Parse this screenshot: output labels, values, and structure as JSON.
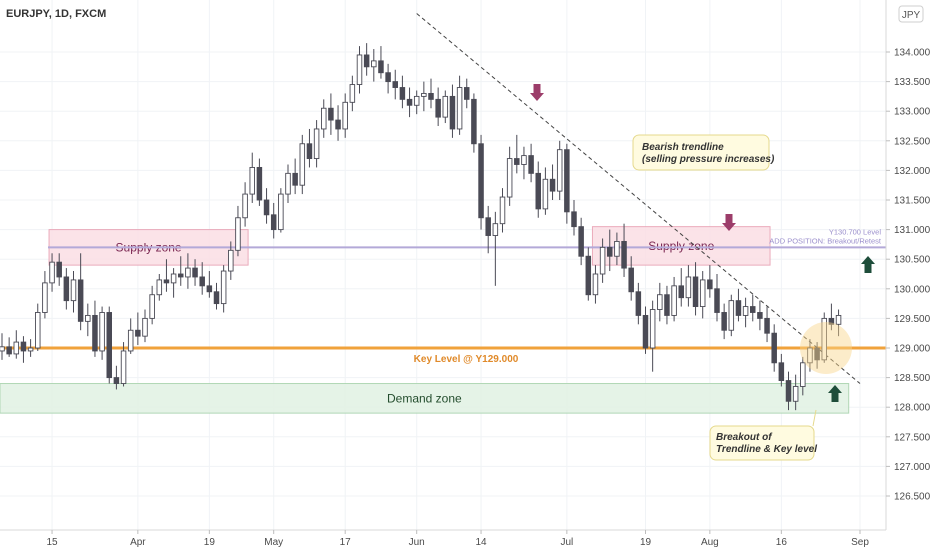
{
  "header": {
    "symbol_title": "EURJPY, 1D, FXCM",
    "currency_badge": "JPY"
  },
  "colors": {
    "bull_body": "#ffffff",
    "bear_body": "#4a4a55",
    "candle_border": "#4a4a55",
    "key_level": "#f0a23b",
    "supply_fill": "#fbe0e6",
    "supply_border": "#e9a2b4",
    "demand_fill": "#e3f2e5",
    "demand_border": "#a9d3ae",
    "add_position_line": "#b3a9d8",
    "arrow_down": "#9c3d6a",
    "arrow_up": "#1e4d3a",
    "trendline": "#444444"
  },
  "chart_data": {
    "type": "candlestick",
    "title": "EURJPY, 1D, FXCM",
    "currency": "JPY",
    "ylim": [
      126.1,
      134.6
    ],
    "y_ticks": [
      "126.500",
      "127.000",
      "127.500",
      "128.000",
      "128.500",
      "129.000",
      "129.500",
      "130.000",
      "130.500",
      "131.000",
      "131.500",
      "132.000",
      "132.500",
      "133.000",
      "133.500",
      "134.000"
    ],
    "x_ticks": [
      {
        "label": "15",
        "index": 7
      },
      {
        "label": "Apr",
        "index": 19
      },
      {
        "label": "19",
        "index": 29
      },
      {
        "label": "May",
        "index": 38
      },
      {
        "label": "17",
        "index": 48
      },
      {
        "label": "Jun",
        "index": 58
      },
      {
        "label": "14",
        "index": 67
      },
      {
        "label": "Jul",
        "index": 79
      },
      {
        "label": "19",
        "index": 90
      },
      {
        "label": "Aug",
        "index": 99
      },
      {
        "label": "16",
        "index": 109
      },
      {
        "label": "Sep",
        "index": 120
      }
    ],
    "candles": [
      {
        "o": 128.95,
        "h": 129.25,
        "l": 128.8,
        "c": 129.02
      },
      {
        "o": 129.02,
        "h": 129.18,
        "l": 128.85,
        "c": 128.9
      },
      {
        "o": 128.9,
        "h": 129.3,
        "l": 128.82,
        "c": 129.1
      },
      {
        "o": 129.1,
        "h": 129.2,
        "l": 128.75,
        "c": 128.95
      },
      {
        "o": 128.95,
        "h": 129.15,
        "l": 128.85,
        "c": 129.0
      },
      {
        "o": 129.0,
        "h": 129.75,
        "l": 128.95,
        "c": 129.6
      },
      {
        "o": 129.6,
        "h": 130.3,
        "l": 129.5,
        "c": 130.1
      },
      {
        "o": 130.1,
        "h": 130.6,
        "l": 129.95,
        "c": 130.45
      },
      {
        "o": 130.45,
        "h": 130.6,
        "l": 130.05,
        "c": 130.2
      },
      {
        "o": 130.2,
        "h": 130.35,
        "l": 129.65,
        "c": 129.8
      },
      {
        "o": 129.8,
        "h": 130.3,
        "l": 129.6,
        "c": 130.15
      },
      {
        "o": 130.15,
        "h": 130.6,
        "l": 129.3,
        "c": 129.45
      },
      {
        "o": 129.45,
        "h": 129.75,
        "l": 129.2,
        "c": 129.55
      },
      {
        "o": 129.55,
        "h": 129.8,
        "l": 128.85,
        "c": 128.95
      },
      {
        "o": 128.95,
        "h": 129.7,
        "l": 128.8,
        "c": 129.6
      },
      {
        "o": 129.6,
        "h": 129.7,
        "l": 128.4,
        "c": 128.5
      },
      {
        "o": 128.5,
        "h": 128.7,
        "l": 128.3,
        "c": 128.4
      },
      {
        "o": 128.4,
        "h": 129.1,
        "l": 128.35,
        "c": 128.95
      },
      {
        "o": 128.95,
        "h": 129.5,
        "l": 128.9,
        "c": 129.3
      },
      {
        "o": 129.3,
        "h": 129.6,
        "l": 129.05,
        "c": 129.2
      },
      {
        "o": 129.2,
        "h": 129.65,
        "l": 129.1,
        "c": 129.5
      },
      {
        "o": 129.5,
        "h": 130.05,
        "l": 129.4,
        "c": 129.9
      },
      {
        "o": 129.9,
        "h": 130.25,
        "l": 129.8,
        "c": 130.15
      },
      {
        "o": 130.15,
        "h": 130.5,
        "l": 129.95,
        "c": 130.1
      },
      {
        "o": 130.1,
        "h": 130.35,
        "l": 129.85,
        "c": 130.25
      },
      {
        "o": 130.25,
        "h": 130.55,
        "l": 130.05,
        "c": 130.2
      },
      {
        "o": 130.2,
        "h": 130.6,
        "l": 130.0,
        "c": 130.35
      },
      {
        "o": 130.35,
        "h": 130.5,
        "l": 130.05,
        "c": 130.2
      },
      {
        "o": 130.2,
        "h": 130.45,
        "l": 129.9,
        "c": 130.05
      },
      {
        "o": 130.05,
        "h": 130.3,
        "l": 129.85,
        "c": 129.95
      },
      {
        "o": 129.95,
        "h": 130.1,
        "l": 129.65,
        "c": 129.75
      },
      {
        "o": 129.75,
        "h": 130.4,
        "l": 129.6,
        "c": 130.3
      },
      {
        "o": 130.3,
        "h": 130.8,
        "l": 130.15,
        "c": 130.65
      },
      {
        "o": 130.65,
        "h": 131.4,
        "l": 130.55,
        "c": 131.2
      },
      {
        "o": 131.2,
        "h": 131.8,
        "l": 131.05,
        "c": 131.6
      },
      {
        "o": 131.6,
        "h": 132.3,
        "l": 131.45,
        "c": 132.05
      },
      {
        "o": 132.05,
        "h": 132.2,
        "l": 131.4,
        "c": 131.5
      },
      {
        "o": 131.5,
        "h": 131.7,
        "l": 131.1,
        "c": 131.25
      },
      {
        "o": 131.25,
        "h": 131.45,
        "l": 130.85,
        "c": 131.0
      },
      {
        "o": 131.0,
        "h": 131.7,
        "l": 130.95,
        "c": 131.6
      },
      {
        "o": 131.6,
        "h": 132.1,
        "l": 131.45,
        "c": 131.95
      },
      {
        "o": 131.95,
        "h": 132.2,
        "l": 131.6,
        "c": 131.75
      },
      {
        "o": 131.75,
        "h": 132.6,
        "l": 131.6,
        "c": 132.45
      },
      {
        "o": 132.45,
        "h": 132.7,
        "l": 132.05,
        "c": 132.2
      },
      {
        "o": 132.2,
        "h": 132.85,
        "l": 132.05,
        "c": 132.7
      },
      {
        "o": 132.7,
        "h": 133.2,
        "l": 132.55,
        "c": 133.05
      },
      {
        "o": 133.05,
        "h": 133.3,
        "l": 132.6,
        "c": 132.85
      },
      {
        "o": 132.85,
        "h": 133.1,
        "l": 132.5,
        "c": 132.7
      },
      {
        "o": 132.7,
        "h": 133.3,
        "l": 132.55,
        "c": 133.15
      },
      {
        "o": 133.15,
        "h": 133.6,
        "l": 133.0,
        "c": 133.45
      },
      {
        "o": 133.45,
        "h": 134.1,
        "l": 133.3,
        "c": 133.95
      },
      {
        "o": 133.95,
        "h": 134.15,
        "l": 133.6,
        "c": 133.75
      },
      {
        "o": 133.75,
        "h": 134.05,
        "l": 133.5,
        "c": 133.85
      },
      {
        "o": 133.85,
        "h": 134.1,
        "l": 133.55,
        "c": 133.65
      },
      {
        "o": 133.65,
        "h": 133.8,
        "l": 133.3,
        "c": 133.5
      },
      {
        "o": 133.5,
        "h": 133.7,
        "l": 133.2,
        "c": 133.4
      },
      {
        "o": 133.4,
        "h": 133.6,
        "l": 133.05,
        "c": 133.2
      },
      {
        "o": 133.2,
        "h": 133.4,
        "l": 132.9,
        "c": 133.1
      },
      {
        "o": 133.1,
        "h": 133.35,
        "l": 132.95,
        "c": 133.25
      },
      {
        "o": 133.25,
        "h": 133.5,
        "l": 133.0,
        "c": 133.3
      },
      {
        "o": 133.3,
        "h": 133.55,
        "l": 133.05,
        "c": 133.2
      },
      {
        "o": 133.2,
        "h": 133.4,
        "l": 132.75,
        "c": 132.9
      },
      {
        "o": 132.9,
        "h": 133.35,
        "l": 132.8,
        "c": 133.25
      },
      {
        "o": 133.25,
        "h": 133.45,
        "l": 132.55,
        "c": 132.7
      },
      {
        "o": 132.7,
        "h": 133.6,
        "l": 132.6,
        "c": 133.4
      },
      {
        "o": 133.4,
        "h": 133.55,
        "l": 133.05,
        "c": 133.2
      },
      {
        "o": 133.2,
        "h": 133.3,
        "l": 132.3,
        "c": 132.45
      },
      {
        "o": 132.45,
        "h": 132.6,
        "l": 131.0,
        "c": 131.2
      },
      {
        "o": 131.2,
        "h": 131.4,
        "l": 130.6,
        "c": 130.9
      },
      {
        "o": 130.9,
        "h": 131.3,
        "l": 130.05,
        "c": 131.1
      },
      {
        "o": 131.1,
        "h": 131.7,
        "l": 130.95,
        "c": 131.55
      },
      {
        "o": 131.55,
        "h": 132.4,
        "l": 131.4,
        "c": 132.2
      },
      {
        "o": 132.2,
        "h": 132.6,
        "l": 131.95,
        "c": 132.1
      },
      {
        "o": 132.1,
        "h": 132.4,
        "l": 131.85,
        "c": 132.25
      },
      {
        "o": 132.25,
        "h": 132.45,
        "l": 131.8,
        "c": 131.95
      },
      {
        "o": 131.95,
        "h": 132.15,
        "l": 131.2,
        "c": 131.35
      },
      {
        "o": 131.35,
        "h": 132.05,
        "l": 131.25,
        "c": 131.85
      },
      {
        "o": 131.85,
        "h": 132.1,
        "l": 131.5,
        "c": 131.65
      },
      {
        "o": 131.65,
        "h": 132.5,
        "l": 131.5,
        "c": 132.35
      },
      {
        "o": 132.35,
        "h": 132.45,
        "l": 131.1,
        "c": 131.3
      },
      {
        "o": 131.3,
        "h": 131.5,
        "l": 130.9,
        "c": 131.05
      },
      {
        "o": 131.05,
        "h": 131.2,
        "l": 130.4,
        "c": 130.55
      },
      {
        "o": 130.55,
        "h": 130.7,
        "l": 129.8,
        "c": 129.9
      },
      {
        "o": 129.9,
        "h": 130.4,
        "l": 129.75,
        "c": 130.25
      },
      {
        "o": 130.25,
        "h": 130.85,
        "l": 130.1,
        "c": 130.7
      },
      {
        "o": 130.7,
        "h": 131.0,
        "l": 130.3,
        "c": 130.55
      },
      {
        "o": 130.55,
        "h": 130.95,
        "l": 130.4,
        "c": 130.8
      },
      {
        "o": 130.8,
        "h": 131.1,
        "l": 130.2,
        "c": 130.35
      },
      {
        "o": 130.35,
        "h": 130.55,
        "l": 129.8,
        "c": 129.95
      },
      {
        "o": 129.95,
        "h": 130.1,
        "l": 129.4,
        "c": 129.55
      },
      {
        "o": 129.55,
        "h": 129.7,
        "l": 128.9,
        "c": 129.0
      },
      {
        "o": 129.0,
        "h": 129.8,
        "l": 128.6,
        "c": 129.65
      },
      {
        "o": 129.65,
        "h": 130.1,
        "l": 129.45,
        "c": 129.9
      },
      {
        "o": 129.9,
        "h": 130.05,
        "l": 129.4,
        "c": 129.55
      },
      {
        "o": 129.55,
        "h": 130.2,
        "l": 129.45,
        "c": 130.05
      },
      {
        "o": 130.05,
        "h": 130.35,
        "l": 129.7,
        "c": 129.85
      },
      {
        "o": 129.85,
        "h": 130.4,
        "l": 129.7,
        "c": 130.2
      },
      {
        "o": 130.2,
        "h": 130.45,
        "l": 129.55,
        "c": 129.7
      },
      {
        "o": 129.7,
        "h": 130.3,
        "l": 129.5,
        "c": 130.15
      },
      {
        "o": 130.15,
        "h": 130.4,
        "l": 129.85,
        "c": 130.0
      },
      {
        "o": 130.0,
        "h": 130.25,
        "l": 129.45,
        "c": 129.6
      },
      {
        "o": 129.6,
        "h": 129.75,
        "l": 129.15,
        "c": 129.3
      },
      {
        "o": 129.3,
        "h": 129.9,
        "l": 129.2,
        "c": 129.8
      },
      {
        "o": 129.8,
        "h": 130.0,
        "l": 129.45,
        "c": 129.55
      },
      {
        "o": 129.55,
        "h": 129.85,
        "l": 129.35,
        "c": 129.7
      },
      {
        "o": 129.7,
        "h": 129.9,
        "l": 129.45,
        "c": 129.6
      },
      {
        "o": 129.6,
        "h": 129.8,
        "l": 129.3,
        "c": 129.5
      },
      {
        "o": 129.5,
        "h": 129.7,
        "l": 129.1,
        "c": 129.25
      },
      {
        "o": 129.25,
        "h": 129.4,
        "l": 128.6,
        "c": 128.75
      },
      {
        "o": 128.75,
        "h": 128.9,
        "l": 128.35,
        "c": 128.45
      },
      {
        "o": 128.45,
        "h": 128.6,
        "l": 127.95,
        "c": 128.1
      },
      {
        "o": 128.1,
        "h": 128.55,
        "l": 127.95,
        "c": 128.35
      },
      {
        "o": 128.35,
        "h": 128.85,
        "l": 128.2,
        "c": 128.75
      },
      {
        "o": 128.75,
        "h": 129.15,
        "l": 128.6,
        "c": 129.0
      },
      {
        "o": 129.0,
        "h": 129.1,
        "l": 128.65,
        "c": 128.8
      },
      {
        "o": 128.8,
        "h": 129.6,
        "l": 128.75,
        "c": 129.5
      },
      {
        "o": 129.5,
        "h": 129.75,
        "l": 129.3,
        "c": 129.4
      },
      {
        "o": 129.4,
        "h": 129.65,
        "l": 129.2,
        "c": 129.55
      }
    ],
    "key_level": {
      "value": 129.0,
      "label": "Key Level @ Y129.000"
    },
    "add_position_line": {
      "value": 130.7,
      "label_1": "Y130.700 Level",
      "label_2": "ADD POSITION: Breakout/Retest"
    },
    "zones": [
      {
        "name": "Supply zone",
        "type": "supply",
        "top": 131.0,
        "bottom": 130.4,
        "from": 7,
        "to": 34
      },
      {
        "name": "Supply zone",
        "type": "supply",
        "top": 131.05,
        "bottom": 130.4,
        "from": 83,
        "to": 107
      },
      {
        "name": "Demand zone",
        "type": "demand",
        "top": 128.4,
        "bottom": 127.9,
        "from": 0,
        "to": 118
      }
    ],
    "trendline": {
      "from_index": 58,
      "from_value": 134.65,
      "to_index": 120,
      "to_value": 128.4
    },
    "annotations": [
      {
        "text_1": "Bearish trendline",
        "text_2": "(selling pressure increases)"
      },
      {
        "text_1": "Breakout of",
        "text_2": "Trendline & Key level"
      }
    ]
  }
}
